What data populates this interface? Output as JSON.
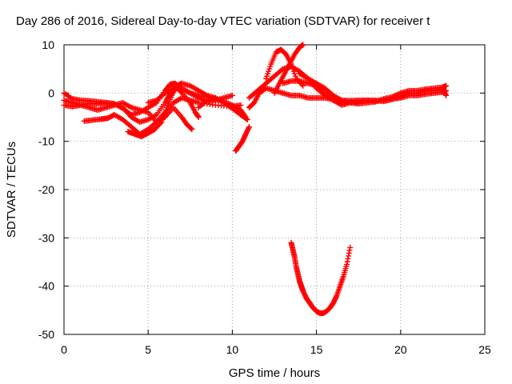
{
  "chart_data": {
    "type": "scatter",
    "title": "Day 286 of 2016, Sidereal Day-to-day VTEC variation (SDTVAR) for receiver t",
    "xlabel": "GPS time / hours",
    "ylabel": "SDTVAR / TECUs",
    "xlim": [
      0,
      25
    ],
    "ylim": [
      -50,
      10
    ],
    "xticks": [
      0,
      5,
      10,
      15,
      20,
      25
    ],
    "yticks": [
      -50,
      -40,
      -30,
      -20,
      -10,
      0,
      10
    ],
    "grid": true,
    "marker": "+",
    "color": "#ff0000",
    "series": [
      {
        "points": [
          [
            0,
            0
          ],
          [
            0.5,
            -1.2
          ],
          [
            1,
            -1.5
          ],
          [
            1.5,
            -1.6
          ],
          [
            2,
            -1.8
          ],
          [
            2.5,
            -2
          ],
          [
            3,
            -2.2
          ],
          [
            3.5,
            -3.2
          ],
          [
            4,
            -4.5
          ],
          [
            4.5,
            -4
          ],
          [
            5,
            -3
          ],
          [
            5.5,
            -2
          ],
          [
            6,
            0.5
          ],
          [
            6.3,
            1.8
          ],
          [
            6.6,
            2
          ],
          [
            7,
            1
          ],
          [
            7.5,
            0
          ],
          [
            8,
            -1
          ],
          [
            8.5,
            -1.8
          ],
          [
            9,
            -1.5
          ],
          [
            9.5,
            -1
          ],
          [
            10,
            -0.5
          ]
        ]
      },
      {
        "points": [
          [
            0,
            -2.5
          ],
          [
            0.5,
            -2.8
          ],
          [
            1,
            -2.5
          ],
          [
            1.5,
            -2.2
          ],
          [
            2,
            -2.2
          ],
          [
            2.5,
            -2
          ],
          [
            3,
            -2.3
          ],
          [
            3.5,
            -3
          ],
          [
            4,
            -5
          ],
          [
            4.5,
            -6
          ],
          [
            5,
            -5.5
          ],
          [
            5.5,
            -4.5
          ],
          [
            6,
            -2
          ],
          [
            6.3,
            0
          ],
          [
            6.6,
            1.5
          ],
          [
            7,
            0
          ],
          [
            7.5,
            -2
          ],
          [
            7.8,
            -4
          ],
          [
            8,
            -5
          ]
        ]
      },
      {
        "points": [
          [
            0,
            -1.5
          ],
          [
            0.5,
            -2
          ],
          [
            1,
            -2.5
          ],
          [
            1.5,
            -3
          ],
          [
            2,
            -3.5
          ],
          [
            2.5,
            -3
          ],
          [
            3,
            -2.5
          ],
          [
            3.5,
            -2
          ],
          [
            4,
            -3
          ],
          [
            4.5,
            -3.5
          ],
          [
            5,
            -4
          ],
          [
            5.5,
            -6
          ],
          [
            6,
            -4
          ],
          [
            6.5,
            -2
          ],
          [
            7,
            -1
          ],
          [
            7.5,
            -1.5
          ],
          [
            8,
            -2
          ],
          [
            9,
            -2.5
          ],
          [
            10,
            -2.8
          ],
          [
            10.5,
            -2.5
          ]
        ]
      },
      {
        "points": [
          [
            1.2,
            -5.8
          ],
          [
            1.7,
            -5.6
          ],
          [
            2.2,
            -5.4
          ],
          [
            2.6,
            -5.2
          ],
          [
            3,
            -4.5
          ],
          [
            3.5,
            -5.5
          ],
          [
            4,
            -7
          ],
          [
            4.5,
            -8.5
          ],
          [
            5,
            -7.5
          ],
          [
            5.5,
            -6
          ],
          [
            6,
            -5
          ],
          [
            6.5,
            -3
          ],
          [
            7,
            -5
          ],
          [
            7.3,
            -6.5
          ],
          [
            7.6,
            -7.5
          ]
        ]
      },
      {
        "points": [
          [
            3.8,
            -8
          ],
          [
            4.2,
            -8.5
          ],
          [
            4.6,
            -9
          ],
          [
            5,
            -8.3
          ],
          [
            5.4,
            -7.5
          ],
          [
            5.8,
            -6
          ],
          [
            6.1,
            -3
          ],
          [
            6.4,
            -0.5
          ],
          [
            6.7,
            1.5
          ],
          [
            7,
            2
          ],
          [
            7.5,
            1.5
          ],
          [
            8,
            0.5
          ],
          [
            8.5,
            -0.5
          ],
          [
            9,
            -1
          ]
        ]
      },
      {
        "points": [
          [
            5,
            -2
          ],
          [
            5.5,
            -1.5
          ],
          [
            6,
            0
          ],
          [
            6.5,
            1
          ],
          [
            7,
            0.8
          ],
          [
            7.5,
            0
          ],
          [
            8,
            -0.5
          ],
          [
            8.5,
            -0.8
          ],
          [
            9,
            -1.2
          ],
          [
            9.5,
            -1.8
          ],
          [
            10,
            -2.5
          ],
          [
            10.5,
            -3.5
          ],
          [
            10.8,
            -5
          ]
        ]
      },
      {
        "points": [
          [
            8,
            -3
          ],
          [
            8.5,
            -1.5
          ],
          [
            9,
            -1
          ],
          [
            9.5,
            -2
          ],
          [
            10,
            -3.2
          ],
          [
            10.5,
            -4.5
          ],
          [
            10.9,
            -5.5
          ]
        ]
      },
      {
        "points": [
          [
            10.2,
            -12
          ],
          [
            10.4,
            -11
          ],
          [
            10.6,
            -10
          ],
          [
            10.8,
            -8.5
          ],
          [
            11,
            -7
          ]
        ]
      },
      {
        "points": [
          [
            11,
            -3
          ],
          [
            11.3,
            -2
          ],
          [
            11.6,
            0
          ],
          [
            12,
            1
          ],
          [
            12.5,
            0.5
          ],
          [
            13,
            0
          ],
          [
            13.5,
            -0.5
          ],
          [
            14,
            -0.5
          ],
          [
            14.5,
            -1
          ],
          [
            15,
            -1
          ],
          [
            15.5,
            -1
          ],
          [
            16,
            -1.3
          ],
          [
            16.5,
            -1.5
          ],
          [
            17,
            -1.6
          ],
          [
            17.5,
            -1.5
          ],
          [
            18,
            -1.5
          ],
          [
            18.5,
            -1.7
          ],
          [
            19,
            -1.5
          ],
          [
            19.5,
            -1.2
          ],
          [
            20,
            -1
          ],
          [
            20.5,
            -0.5
          ],
          [
            21,
            -0.5
          ],
          [
            21.5,
            -0.2
          ],
          [
            22,
            0
          ],
          [
            22.5,
            0.2
          ],
          [
            22.7,
            0.5
          ]
        ]
      },
      {
        "points": [
          [
            11,
            -1
          ],
          [
            11.5,
            0.5
          ],
          [
            12,
            2
          ],
          [
            12.5,
            3.5
          ],
          [
            13,
            5
          ],
          [
            13.5,
            5.5
          ],
          [
            14,
            4.5
          ],
          [
            14.5,
            3
          ],
          [
            15,
            2
          ],
          [
            15.5,
            1
          ],
          [
            16,
            -0.5
          ],
          [
            16.5,
            -1.5
          ],
          [
            17,
            -2
          ],
          [
            17.5,
            -2.2
          ],
          [
            18,
            -2
          ],
          [
            18.5,
            -1.8
          ],
          [
            19,
            -1.2
          ],
          [
            19.5,
            -0.8
          ],
          [
            20,
            0
          ],
          [
            20.5,
            0.5
          ],
          [
            21,
            0.5
          ],
          [
            21.5,
            0.8
          ],
          [
            22,
            1
          ],
          [
            22.5,
            1.2
          ],
          [
            22.7,
            1.5
          ]
        ]
      },
      {
        "points": [
          [
            12,
            3
          ],
          [
            12.3,
            6
          ],
          [
            12.6,
            8.5
          ],
          [
            12.9,
            9
          ],
          [
            13.2,
            8
          ],
          [
            13.5,
            6
          ],
          [
            13.8,
            3
          ],
          [
            14.2,
            1.5
          ]
        ]
      },
      {
        "points": [
          [
            12.5,
            0
          ],
          [
            12.8,
            2
          ],
          [
            13.1,
            4
          ],
          [
            13.4,
            6
          ],
          [
            13.7,
            8
          ],
          [
            14,
            9.5
          ],
          [
            14.2,
            10
          ]
        ]
      },
      {
        "points": [
          [
            13,
            2
          ],
          [
            13.5,
            2.5
          ],
          [
            14,
            2.5
          ],
          [
            14.5,
            2
          ],
          [
            15,
            1.5
          ],
          [
            15.5,
            0.5
          ],
          [
            16,
            -1.5
          ],
          [
            16.5,
            -2.5
          ],
          [
            17,
            -2
          ],
          [
            17.5,
            -2
          ]
        ]
      },
      {
        "points": [
          [
            14,
            4
          ],
          [
            14.5,
            3
          ],
          [
            15,
            1
          ],
          [
            15.5,
            -0.5
          ],
          [
            16,
            -1.5
          ],
          [
            16.5,
            -2
          ],
          [
            17,
            -1.8
          ],
          [
            17.5,
            -1.8
          ],
          [
            18,
            -1.5
          ],
          [
            18.5,
            -1.5
          ],
          [
            19,
            -1.7
          ],
          [
            19.5,
            -1.3
          ],
          [
            20,
            -0.8
          ],
          [
            20.5,
            0
          ],
          [
            21,
            0
          ],
          [
            21.5,
            0.5
          ],
          [
            22,
            0.5
          ],
          [
            22.5,
            0.8
          ],
          [
            22.7,
            -0.5
          ]
        ]
      },
      {
        "points": [
          [
            13.5,
            -31
          ],
          [
            13.6,
            -32.5
          ],
          [
            13.7,
            -34
          ],
          [
            13.8,
            -36
          ],
          [
            13.9,
            -37.5
          ],
          [
            14,
            -39
          ],
          [
            14.1,
            -40
          ],
          [
            14.2,
            -41
          ],
          [
            14.4,
            -42.5
          ],
          [
            14.6,
            -43.5
          ],
          [
            14.8,
            -44.5
          ],
          [
            15,
            -45.2
          ],
          [
            15.2,
            -45.6
          ],
          [
            15.4,
            -45.6
          ],
          [
            15.6,
            -45.2
          ],
          [
            15.8,
            -44.5
          ],
          [
            16,
            -43.5
          ],
          [
            16.2,
            -42
          ],
          [
            16.4,
            -40
          ],
          [
            16.6,
            -38
          ],
          [
            16.8,
            -35.5
          ],
          [
            17,
            -32
          ]
        ]
      }
    ]
  }
}
